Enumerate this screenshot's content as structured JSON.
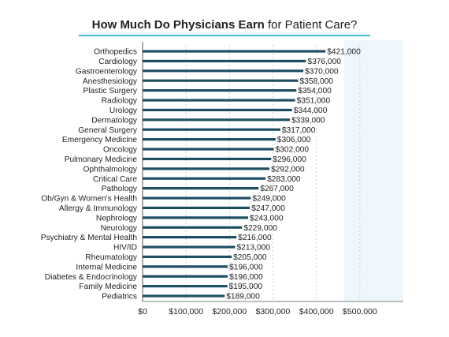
{
  "chart_data": {
    "type": "bar",
    "orientation": "horizontal",
    "title_parts": {
      "bold": "How Much Do Physicians Earn",
      "regular": " for Patient Care?"
    },
    "categories": [
      "Orthopedics",
      "Cardiology",
      "Gastroenterology",
      "Anesthesiology",
      "Plastic Surgery",
      "Radiology",
      "Urology",
      "Dermatology",
      "General Surgery",
      "Emergency Medicine",
      "Oncology",
      "Pulmonary Medicine",
      "Ophthalmology",
      "Critical Care",
      "Pathology",
      "Ob/Gyn & Women's Health",
      "Allergy & Immunology",
      "Nephrology",
      "Neurology",
      "Psychiatry & Mental Health",
      "HIV/ID",
      "Rheumatology",
      "Internal Medicine",
      "Diabetes & Endocrinology",
      "Family Medicine",
      "Pediatrics"
    ],
    "values": [
      421000,
      376000,
      370000,
      358000,
      354000,
      351000,
      344000,
      339000,
      317000,
      306000,
      302000,
      296000,
      292000,
      283000,
      267000,
      249000,
      247000,
      243000,
      229000,
      216000,
      213000,
      205000,
      196000,
      196000,
      195000,
      189000
    ],
    "value_labels": [
      "$421,000",
      "$376,000",
      "$370,000",
      "$358,000",
      "$354,000",
      "$351,000",
      "$344,000",
      "$339,000",
      "$317,000",
      "$306,000",
      "$302,000",
      "$296,000",
      "$292,000",
      "$283,000",
      "$267,000",
      "$249,000",
      "$247,000",
      "$243,000",
      "$229,000",
      "$216,000",
      "$213,000",
      "$205,000",
      "$196,000",
      "$196,000",
      "$195,000",
      "$189,000"
    ],
    "x_ticks": [
      0,
      100000,
      200000,
      300000,
      400000,
      500000
    ],
    "x_tick_labels": [
      "$0",
      "$100,000",
      "$200,000",
      "$300,000",
      "$400,000",
      "$500,000"
    ],
    "xlim": [
      0,
      600000
    ],
    "grid": "vertical dotted",
    "colors": {
      "bar": "#1f4e63",
      "title_rule": "#4fb8d0",
      "plot_band": "#eef7fb",
      "grid": "#b8c4cc",
      "axis": "#555555",
      "text": "#222222"
    }
  }
}
